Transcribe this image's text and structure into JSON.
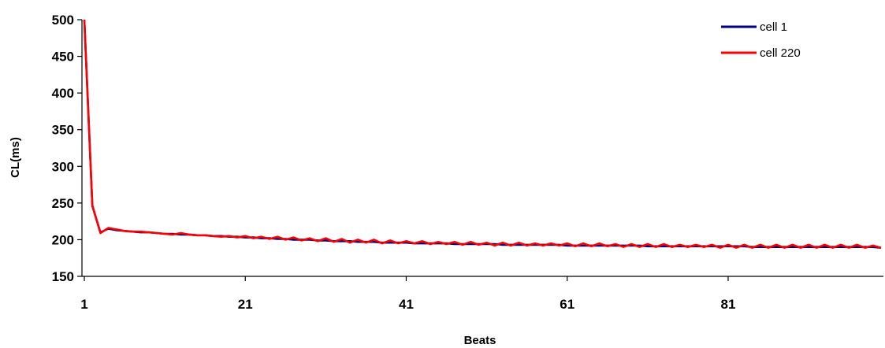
{
  "chart_data": {
    "type": "line",
    "xlabel": "Beats",
    "ylabel": "CL(ms)",
    "xlim": [
      1,
      100
    ],
    "ylim": [
      150,
      500
    ],
    "yticks": [
      150,
      200,
      250,
      300,
      350,
      400,
      450,
      500
    ],
    "xticks": [
      1,
      21,
      41,
      61,
      81
    ],
    "grid": false,
    "legend": "top-right",
    "series": [
      {
        "name": "cell 1",
        "color": "#000080",
        "x": [
          1,
          2,
          3,
          4,
          5,
          6,
          7,
          8,
          9,
          10,
          11,
          12,
          13,
          14,
          15,
          16,
          17,
          18,
          19,
          20,
          21,
          22,
          23,
          24,
          25,
          26,
          27,
          28,
          29,
          30,
          31,
          32,
          33,
          34,
          35,
          36,
          37,
          38,
          39,
          40,
          41,
          42,
          43,
          44,
          45,
          46,
          47,
          48,
          49,
          50,
          51,
          52,
          53,
          54,
          55,
          56,
          57,
          58,
          59,
          60,
          61,
          62,
          63,
          64,
          65,
          66,
          67,
          68,
          69,
          70,
          71,
          72,
          73,
          74,
          75,
          76,
          77,
          78,
          79,
          80,
          81,
          82,
          83,
          84,
          85,
          86,
          87,
          88,
          89,
          90,
          91,
          92,
          93,
          94,
          95,
          96,
          97,
          98,
          99,
          100
        ],
        "values": [
          500,
          246,
          210,
          215,
          213,
          212,
          211,
          210,
          210,
          209,
          208,
          208,
          207,
          207,
          206,
          206,
          205,
          205,
          204,
          204,
          203,
          203,
          202,
          202,
          201,
          201,
          200,
          200,
          200,
          199,
          199,
          198,
          198,
          198,
          197,
          197,
          197,
          196,
          196,
          196,
          196,
          195,
          195,
          195,
          195,
          195,
          194,
          194,
          194,
          194,
          194,
          194,
          193,
          193,
          193,
          193,
          193,
          193,
          193,
          193,
          192,
          192,
          192,
          192,
          192,
          192,
          192,
          192,
          192,
          192,
          191,
          191,
          191,
          191,
          191,
          191,
          191,
          191,
          191,
          191,
          191,
          191,
          191,
          190,
          190,
          190,
          190,
          190,
          190,
          190,
          190,
          190,
          190,
          190,
          190,
          190,
          190,
          190,
          190,
          189
        ]
      },
      {
        "name": "cell 220",
        "color": "#ff0000",
        "x": [
          1,
          2,
          3,
          4,
          5,
          6,
          7,
          8,
          9,
          10,
          11,
          12,
          13,
          14,
          15,
          16,
          17,
          18,
          19,
          20,
          21,
          22,
          23,
          24,
          25,
          26,
          27,
          28,
          29,
          30,
          31,
          32,
          33,
          34,
          35,
          36,
          37,
          38,
          39,
          40,
          41,
          42,
          43,
          44,
          45,
          46,
          47,
          48,
          49,
          50,
          51,
          52,
          53,
          54,
          55,
          56,
          57,
          58,
          59,
          60,
          61,
          62,
          63,
          64,
          65,
          66,
          67,
          68,
          69,
          70,
          71,
          72,
          73,
          74,
          75,
          76,
          77,
          78,
          79,
          80,
          81,
          82,
          83,
          84,
          85,
          86,
          87,
          88,
          89,
          90,
          91,
          92,
          93,
          94,
          95,
          96,
          97,
          98,
          99,
          100
        ],
        "values": [
          500,
          247,
          209,
          216,
          214,
          212,
          211,
          211,
          210,
          209,
          208,
          207,
          209,
          207,
          206,
          206,
          205,
          204,
          205,
          203,
          205,
          202,
          204,
          201,
          204,
          200,
          203,
          199,
          202,
          198,
          202,
          197,
          201,
          196,
          200,
          196,
          200,
          195,
          199,
          195,
          198,
          195,
          198,
          194,
          197,
          194,
          197,
          193,
          197,
          193,
          196,
          192,
          196,
          192,
          196,
          192,
          195,
          192,
          195,
          192,
          195,
          191,
          195,
          191,
          195,
          191,
          194,
          190,
          194,
          190,
          194,
          190,
          194,
          190,
          193,
          190,
          193,
          190,
          193,
          189,
          193,
          189,
          193,
          189,
          193,
          189,
          193,
          189,
          193,
          189,
          193,
          189,
          193,
          189,
          193,
          189,
          193,
          189,
          192,
          189
        ]
      }
    ]
  }
}
